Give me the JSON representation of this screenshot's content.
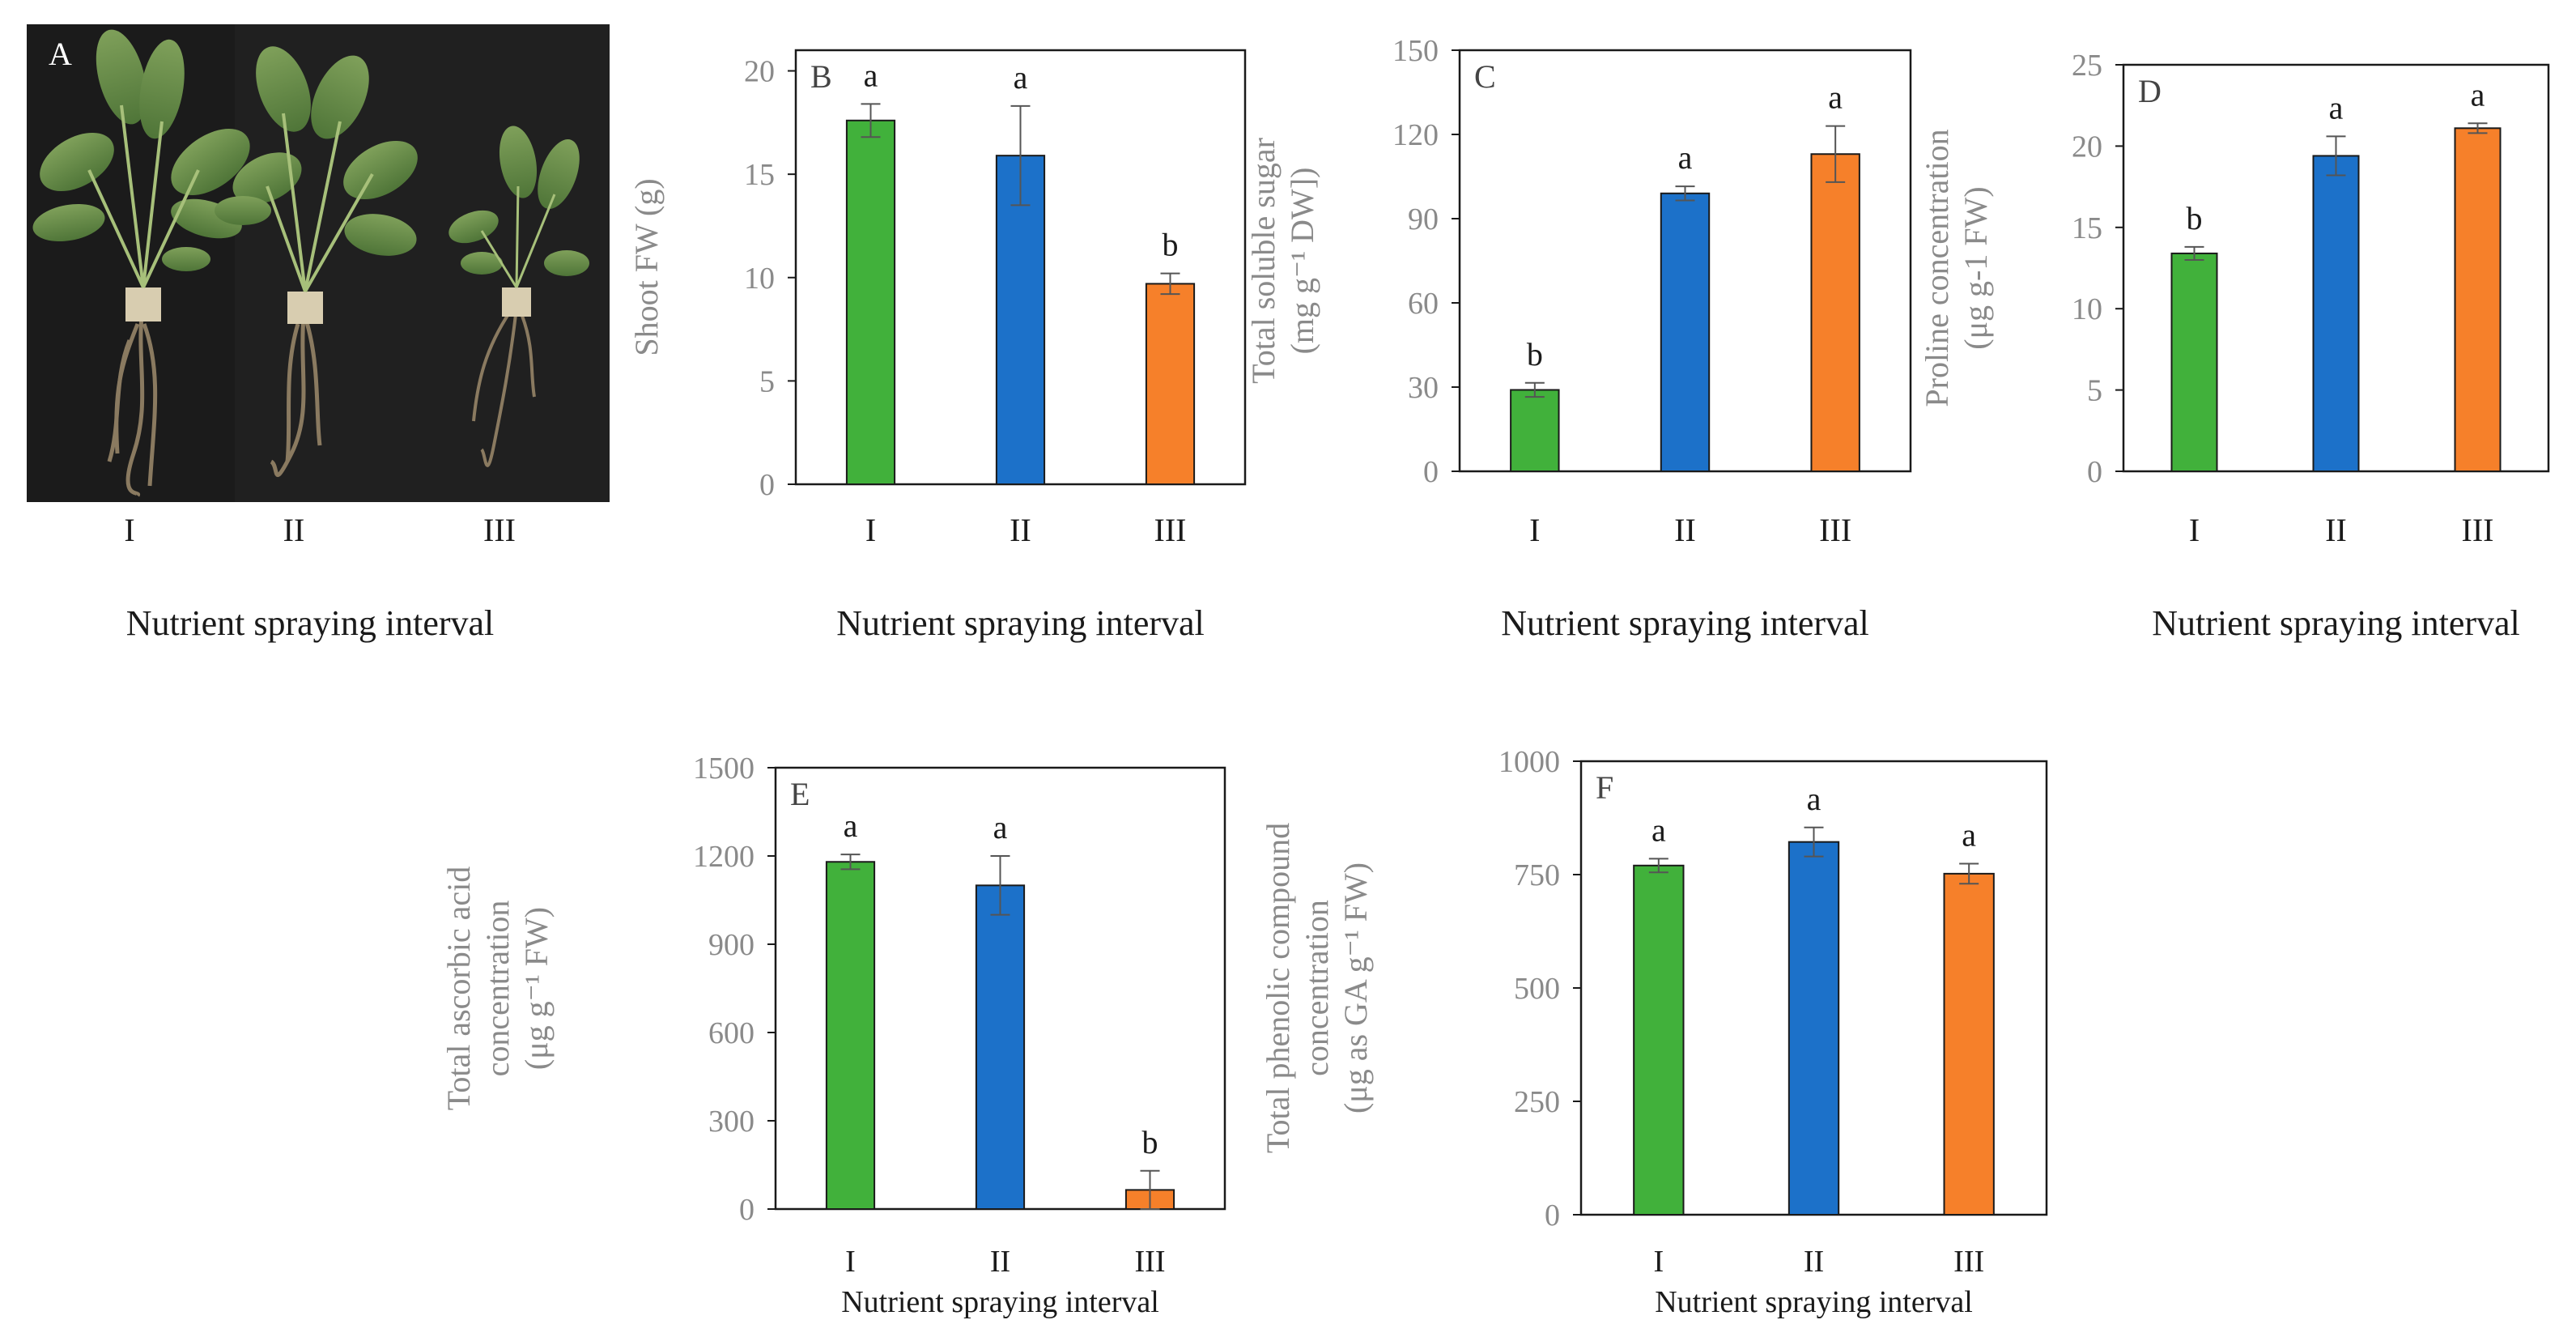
{
  "figure": {
    "photo": {
      "panel_label": "A",
      "treatments": [
        "I",
        "II",
        "III"
      ],
      "xlabel": "Nutrient spraying interval"
    }
  },
  "colors": {
    "I": "#41B13B",
    "II": "#1C71C9",
    "III": "#F6802A",
    "axis_text": "#8a8a8a",
    "stroke": "#1a1a1a"
  },
  "chart_data": [
    {
      "panel": "B",
      "type": "bar",
      "categories": [
        "I",
        "II",
        "III"
      ],
      "values": [
        17.6,
        15.9,
        9.7
      ],
      "errors": [
        0.8,
        2.4,
        0.5
      ],
      "letters": [
        "a",
        "a",
        "b"
      ],
      "ylabel_lines": [
        "Shoot FW (g)"
      ],
      "xlabel": "Nutrient spraying interval",
      "ylim": [
        0,
        21
      ],
      "yticks": [
        0,
        5,
        10,
        15,
        20
      ]
    },
    {
      "panel": "C",
      "type": "bar",
      "categories": [
        "I",
        "II",
        "III"
      ],
      "values": [
        29,
        99,
        113
      ],
      "errors": [
        2.5,
        2.5,
        10
      ],
      "letters": [
        "b",
        "a",
        "a"
      ],
      "ylabel_lines": [
        "Total soluble sugar",
        "(mg g⁻¹ DW])"
      ],
      "xlabel": "Nutrient spraying interval",
      "ylim": [
        0,
        150
      ],
      "yticks": [
        0,
        30,
        60,
        90,
        120,
        150
      ]
    },
    {
      "panel": "D",
      "type": "bar",
      "categories": [
        "I",
        "II",
        "III"
      ],
      "values": [
        13.4,
        19.4,
        21.1
      ],
      "errors": [
        0.4,
        1.2,
        0.3
      ],
      "letters": [
        "b",
        "a",
        "a"
      ],
      "ylabel_lines": [
        "Proline concentration",
        "(μg g-1 FW)"
      ],
      "xlabel": "Nutrient spraying interval",
      "ylim": [
        0,
        25
      ],
      "yticks": [
        0,
        5,
        10,
        15,
        20,
        25
      ]
    },
    {
      "panel": "E",
      "type": "bar",
      "categories": [
        "I",
        "II",
        "III"
      ],
      "values": [
        1180,
        1100,
        65
      ],
      "errors": [
        25,
        100,
        65
      ],
      "letters": [
        "a",
        "a",
        "b"
      ],
      "ylabel_lines": [
        "Total ascorbic acid",
        "concentration",
        "(μg g⁻¹ FW)"
      ],
      "xlabel": "Nutrient spraying interval",
      "ylim": [
        0,
        1500
      ],
      "yticks": [
        0,
        300,
        600,
        900,
        1200,
        1500
      ]
    },
    {
      "panel": "F",
      "type": "bar",
      "categories": [
        "I",
        "II",
        "III"
      ],
      "values": [
        770,
        822,
        752
      ],
      "errors": [
        15,
        32,
        22
      ],
      "letters": [
        "a",
        "a",
        "a"
      ],
      "ylabel_lines": [
        "Total phenolic compound",
        "concentration",
        "(μg as GA g⁻¹ FW)"
      ],
      "xlabel": "Nutrient spraying interval",
      "ylim": [
        0,
        1000
      ],
      "yticks": [
        0,
        250,
        500,
        750,
        1000
      ]
    }
  ]
}
